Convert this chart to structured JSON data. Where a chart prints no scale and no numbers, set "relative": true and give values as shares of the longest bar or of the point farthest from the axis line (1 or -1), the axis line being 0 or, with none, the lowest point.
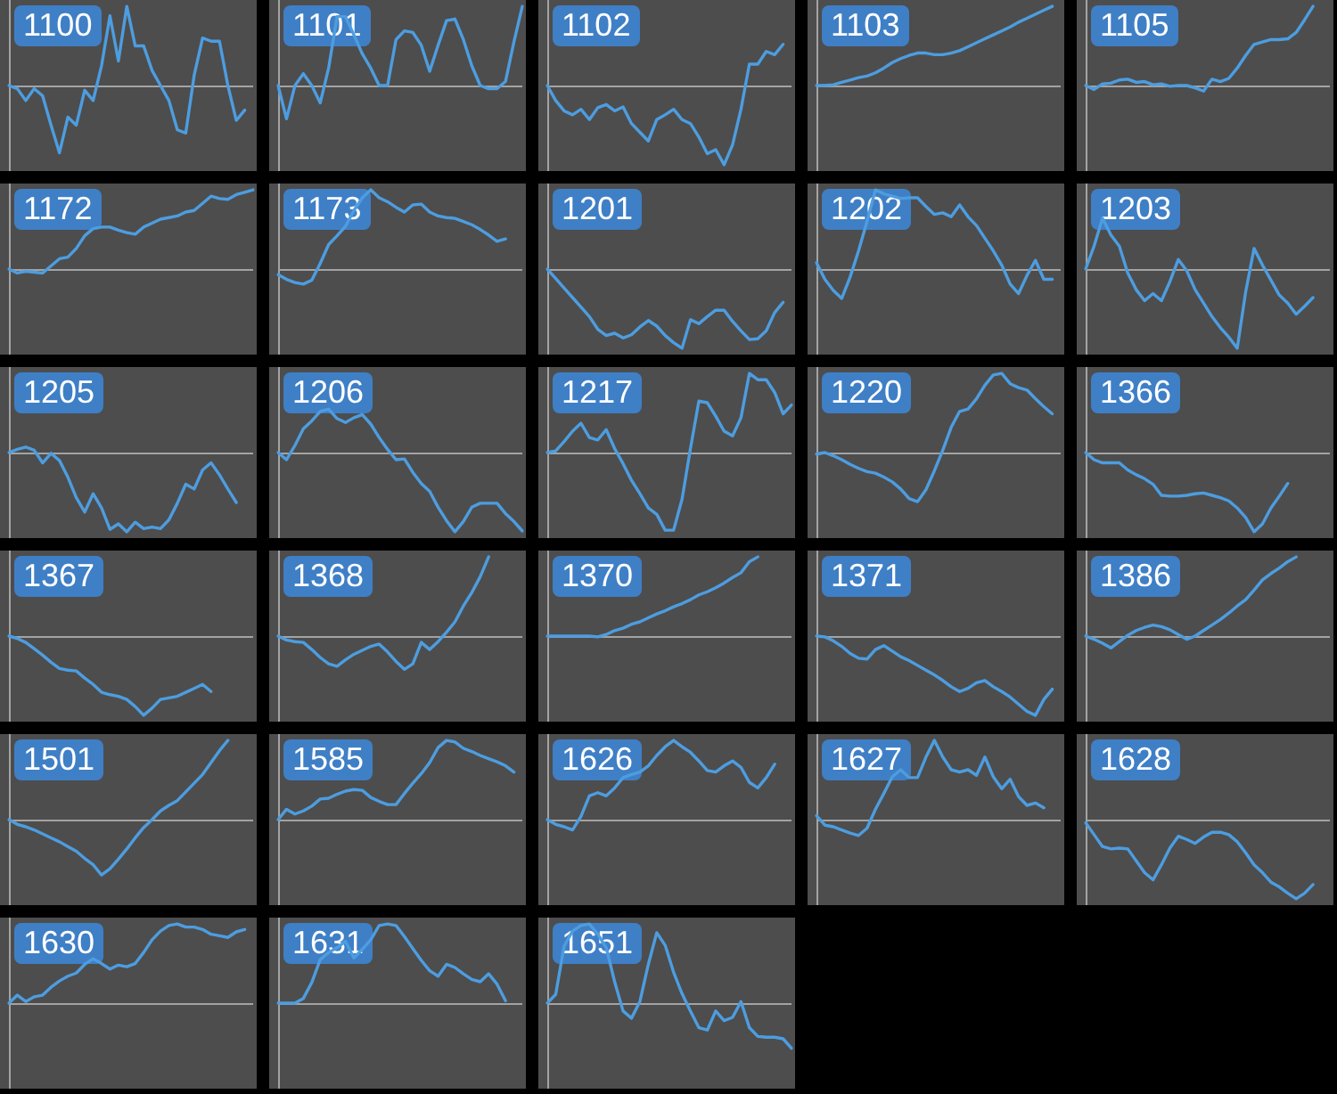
{
  "chart_data": [
    {
      "type": "line",
      "title": "1100",
      "relative": true,
      "marker": "none",
      "color": "#4d9de0",
      "categories": [
        null,
        null,
        null,
        null,
        null,
        null,
        null,
        null,
        null,
        null,
        null,
        null,
        null,
        null,
        null,
        null,
        null,
        null,
        null,
        null,
        null,
        null,
        null,
        null,
        null,
        null,
        null,
        null,
        null,
        null
      ],
      "values": [
        0,
        -0.04,
        -0.19,
        -0.04,
        -0.13,
        -0.5,
        -0.85,
        -0.4,
        -0.5,
        -0.06,
        -0.19,
        0.25,
        0.88,
        0.31,
        1,
        0.5,
        0.5,
        0.19,
        0,
        -0.19,
        -0.56,
        -0.6,
        0.13,
        0.6,
        0.56,
        0.56,
        0,
        -0.44,
        -0.31,
        null
      ]
    },
    {
      "type": "line",
      "title": "1101",
      "relative": true,
      "marker": "none",
      "color": "#4d9de0",
      "categories": [
        null,
        null,
        null,
        null,
        null,
        null,
        null,
        null,
        null,
        null,
        null,
        null,
        null,
        null,
        null,
        null,
        null,
        null,
        null,
        null,
        null,
        null,
        null,
        null,
        null,
        null,
        null,
        null,
        null,
        null
      ],
      "values": [
        0,
        -0.42,
        0,
        0.15,
        0,
        -0.22,
        0.22,
        0.87,
        0.87,
        0.64,
        0.4,
        0.22,
        0,
        0,
        0.58,
        0.69,
        0.67,
        0.51,
        0.18,
        0.51,
        0.82,
        0.84,
        0.58,
        0.25,
        0,
        -0.04,
        -0.04,
        0.05,
        0.55,
        1
      ]
    },
    {
      "type": "line",
      "title": "1102",
      "relative": true,
      "marker": "none",
      "color": "#4d9de0",
      "categories": [
        null,
        null,
        null,
        null,
        null,
        null,
        null,
        null,
        null,
        null,
        null,
        null,
        null,
        null,
        null,
        null,
        null,
        null,
        null,
        null,
        null,
        null,
        null,
        null,
        null,
        null,
        null,
        null,
        null,
        null
      ],
      "values": [
        0,
        -0.19,
        -0.32,
        -0.37,
        -0.3,
        -0.43,
        -0.28,
        -0.24,
        -0.32,
        -0.27,
        -0.48,
        -0.59,
        -0.7,
        -0.43,
        -0.37,
        -0.3,
        -0.43,
        -0.48,
        -0.65,
        -0.86,
        -0.81,
        -1,
        -0.75,
        -0.3,
        0.27,
        0.27,
        0.43,
        0.39,
        0.52,
        null
      ]
    },
    {
      "type": "line",
      "title": "1103",
      "relative": true,
      "marker": "none",
      "color": "#4d9de0",
      "categories": [
        null,
        null,
        null,
        null,
        null,
        null,
        null,
        null,
        null,
        null,
        null,
        null,
        null,
        null,
        null,
        null,
        null,
        null,
        null,
        null,
        null,
        null,
        null,
        null,
        null,
        null,
        null,
        null,
        null,
        null
      ],
      "values": [
        0,
        0,
        0.01,
        0.04,
        0.07,
        0.1,
        0.12,
        0.16,
        0.22,
        0.29,
        0.34,
        0.38,
        0.41,
        0.41,
        0.39,
        0.39,
        0.41,
        0.44,
        0.49,
        0.54,
        0.59,
        0.64,
        0.69,
        0.74,
        0.8,
        0.85,
        0.9,
        0.95,
        1,
        null
      ]
    },
    {
      "type": "line",
      "title": "1105",
      "relative": true,
      "marker": "none",
      "color": "#4d9de0",
      "categories": [
        null,
        null,
        null,
        null,
        null,
        null,
        null,
        null,
        null,
        null,
        null,
        null,
        null,
        null,
        null,
        null,
        null,
        null,
        null,
        null,
        null,
        null,
        null,
        null,
        null,
        null,
        null,
        null,
        null,
        null
      ],
      "values": [
        0,
        -0.05,
        0.02,
        0.03,
        0.07,
        0.08,
        0.04,
        0.05,
        0.01,
        0.02,
        -0.01,
        0,
        0,
        -0.03,
        -0.07,
        0.08,
        0.05,
        0.09,
        0.22,
        0.38,
        0.52,
        0.55,
        0.58,
        0.58,
        0.59,
        0.67,
        0.83,
        1,
        null,
        null
      ]
    },
    {
      "type": "line",
      "title": "1172",
      "relative": true,
      "marker": "none",
      "color": "#4d9de0",
      "categories": [
        null,
        null,
        null,
        null,
        null,
        null,
        null,
        null,
        null,
        null,
        null,
        null,
        null,
        null,
        null,
        null,
        null,
        null,
        null,
        null,
        null,
        null,
        null,
        null,
        null,
        null,
        null,
        null,
        null,
        null
      ],
      "values": [
        0,
        -0.05,
        -0.03,
        -0.04,
        -0.05,
        0.04,
        0.13,
        0.15,
        0.26,
        0.42,
        0.51,
        0.53,
        0.53,
        0.49,
        0.46,
        0.44,
        0.53,
        0.58,
        0.63,
        0.65,
        0.67,
        0.72,
        0.74,
        0.83,
        0.92,
        0.89,
        0.88,
        0.94,
        0.97,
        1
      ]
    },
    {
      "type": "line",
      "title": "1173",
      "relative": true,
      "marker": "none",
      "color": "#4d9de0",
      "categories": [
        null,
        null,
        null,
        null,
        null,
        null,
        null,
        null,
        null,
        null,
        null,
        null,
        null,
        null,
        null,
        null,
        null,
        null,
        null,
        null,
        null,
        null,
        null,
        null,
        null,
        null,
        null,
        null,
        null,
        null
      ],
      "values": [
        -0.07,
        -0.13,
        -0.17,
        -0.19,
        -0.14,
        0.07,
        0.31,
        0.42,
        0.54,
        0.74,
        0.9,
        1,
        0.9,
        0.85,
        0.78,
        0.72,
        0.81,
        0.82,
        0.72,
        0.67,
        0.65,
        0.64,
        0.6,
        0.56,
        0.5,
        0.43,
        0.35,
        0.38,
        null,
        null
      ]
    },
    {
      "type": "line",
      "title": "1201",
      "relative": true,
      "marker": "none",
      "color": "#4d9de0",
      "categories": [
        null,
        null,
        null,
        null,
        null,
        null,
        null,
        null,
        null,
        null,
        null,
        null,
        null,
        null,
        null,
        null,
        null,
        null,
        null,
        null,
        null,
        null,
        null,
        null,
        null,
        null,
        null,
        null,
        null,
        null
      ],
      "values": [
        0,
        -0.12,
        -0.24,
        -0.36,
        -0.48,
        -0.6,
        -0.76,
        -0.84,
        -0.81,
        -0.87,
        -0.83,
        -0.73,
        -0.65,
        -0.72,
        -0.84,
        -0.93,
        -1,
        -0.64,
        -0.69,
        -0.6,
        -0.52,
        -0.52,
        -0.66,
        -0.78,
        -0.89,
        -0.88,
        -0.78,
        -0.55,
        -0.42,
        null
      ]
    },
    {
      "type": "line",
      "title": "1202",
      "relative": true,
      "marker": "none",
      "color": "#4d9de0",
      "categories": [
        null,
        null,
        null,
        null,
        null,
        null,
        null,
        null,
        null,
        null,
        null,
        null,
        null,
        null,
        null,
        null,
        null,
        null,
        null,
        null,
        null,
        null,
        null,
        null,
        null,
        null,
        null,
        null,
        null,
        null
      ],
      "values": [
        0.08,
        -0.13,
        -0.27,
        -0.37,
        -0.1,
        0.23,
        0.6,
        1,
        0.95,
        0.92,
        0.89,
        0.9,
        0.9,
        0.79,
        0.69,
        0.71,
        0.66,
        0.81,
        0.66,
        0.55,
        0.39,
        0.23,
        0.05,
        -0.19,
        -0.31,
        -0.08,
        0.11,
        -0.13,
        -0.13,
        null
      ]
    },
    {
      "type": "line",
      "title": "1203",
      "relative": true,
      "marker": "none",
      "color": "#4d9de0",
      "categories": [
        null,
        null,
        null,
        null,
        null,
        null,
        null,
        null,
        null,
        null,
        null,
        null,
        null,
        null,
        null,
        null,
        null,
        null,
        null,
        null,
        null,
        null,
        null,
        null,
        null,
        null,
        null,
        null,
        null,
        null
      ],
      "values": [
        0,
        0.29,
        0.64,
        0.43,
        0.29,
        -0.05,
        -0.26,
        -0.4,
        -0.31,
        -0.4,
        -0.16,
        0.12,
        -0.02,
        -0.26,
        -0.43,
        -0.6,
        -0.74,
        -0.86,
        -1,
        -0.29,
        0.26,
        0.05,
        -0.14,
        -0.33,
        -0.43,
        -0.57,
        -0.47,
        -0.36,
        null,
        null
      ]
    },
    {
      "type": "line",
      "title": "1205",
      "relative": true,
      "marker": "none",
      "color": "#4d9de0",
      "categories": [
        null,
        null,
        null,
        null,
        null,
        null,
        null,
        null,
        null,
        null,
        null,
        null,
        null,
        null,
        null,
        null,
        null,
        null,
        null,
        null,
        null,
        null,
        null,
        null,
        null,
        null,
        null,
        null,
        null,
        null
      ],
      "values": [
        0,
        0.04,
        0.07,
        0.03,
        -0.13,
        -0.01,
        -0.1,
        -0.31,
        -0.57,
        -0.75,
        -0.52,
        -0.7,
        -0.97,
        -0.9,
        -1,
        -0.88,
        -0.96,
        -0.94,
        -0.96,
        -0.85,
        -0.64,
        -0.4,
        -0.46,
        -0.22,
        -0.13,
        -0.28,
        -0.46,
        -0.63,
        null,
        null
      ]
    },
    {
      "type": "line",
      "title": "1206",
      "relative": true,
      "marker": "none",
      "color": "#4d9de0",
      "categories": [
        null,
        null,
        null,
        null,
        null,
        null,
        null,
        null,
        null,
        null,
        null,
        null,
        null,
        null,
        null,
        null,
        null,
        null,
        null,
        null,
        null,
        null,
        null,
        null,
        null,
        null,
        null,
        null,
        null,
        null
      ],
      "values": [
        0,
        -0.09,
        0.09,
        0.3,
        0.4,
        0.52,
        0.55,
        0.43,
        0.38,
        0.44,
        0.48,
        0.36,
        0.19,
        0.04,
        -0.09,
        -0.08,
        -0.25,
        -0.39,
        -0.49,
        -0.69,
        -0.86,
        -1,
        -0.87,
        -0.69,
        -0.64,
        -0.64,
        -0.64,
        -0.77,
        -0.87,
        -0.99
      ]
    },
    {
      "type": "line",
      "title": "1217",
      "relative": true,
      "marker": "none",
      "color": "#4d9de0",
      "categories": [
        null,
        null,
        null,
        null,
        null,
        null,
        null,
        null,
        null,
        null,
        null,
        null,
        null,
        null,
        null,
        null,
        null,
        null,
        null,
        null,
        null,
        null,
        null,
        null,
        null,
        null,
        null,
        null,
        null,
        null
      ],
      "values": [
        0,
        0.02,
        0.14,
        0.27,
        0.37,
        0.19,
        0.16,
        0.29,
        0.05,
        -0.14,
        -0.35,
        -0.52,
        -0.7,
        -0.78,
        -0.98,
        -0.98,
        -0.59,
        0.05,
        0.65,
        0.63,
        0.46,
        0.27,
        0.21,
        0.44,
        1,
        0.92,
        0.92,
        0.76,
        0.49,
        0.6
      ]
    },
    {
      "type": "line",
      "title": "1220",
      "relative": true,
      "marker": "none",
      "color": "#4d9de0",
      "categories": [
        null,
        null,
        null,
        null,
        null,
        null,
        null,
        null,
        null,
        null,
        null,
        null,
        null,
        null,
        null,
        null,
        null,
        null,
        null,
        null,
        null,
        null,
        null,
        null,
        null,
        null,
        null,
        null,
        null,
        null
      ],
      "values": [
        -0.02,
        0,
        -0.04,
        -0.09,
        -0.15,
        -0.2,
        -0.24,
        -0.26,
        -0.31,
        -0.37,
        -0.46,
        -0.58,
        -0.62,
        -0.47,
        -0.23,
        0.03,
        0.32,
        0.52,
        0.55,
        0.68,
        0.85,
        0.98,
        1,
        0.87,
        0.82,
        0.79,
        0.68,
        0.58,
        0.49,
        null
      ]
    },
    {
      "type": "line",
      "title": "1366",
      "relative": true,
      "marker": "none",
      "color": "#4d9de0",
      "categories": [
        null,
        null,
        null,
        null,
        null,
        null,
        null,
        null,
        null,
        null,
        null,
        null,
        null,
        null,
        null,
        null,
        null,
        null,
        null,
        null,
        null,
        null,
        null,
        null,
        null,
        null,
        null,
        null,
        null,
        null
      ],
      "values": [
        0,
        -0.09,
        -0.13,
        -0.13,
        -0.13,
        -0.22,
        -0.28,
        -0.33,
        -0.4,
        -0.54,
        -0.55,
        -0.55,
        -0.54,
        -0.52,
        -0.51,
        -0.54,
        -0.57,
        -0.61,
        -0.7,
        -0.82,
        -1,
        -0.9,
        -0.7,
        -0.55,
        -0.39,
        null,
        null,
        null,
        null,
        null
      ]
    },
    {
      "type": "line",
      "title": "1367",
      "relative": true,
      "marker": "none",
      "color": "#4d9de0",
      "categories": [
        null,
        null,
        null,
        null,
        null,
        null,
        null,
        null,
        null,
        null,
        null,
        null,
        null,
        null,
        null,
        null,
        null,
        null,
        null,
        null,
        null,
        null,
        null,
        null,
        null,
        null,
        null,
        null,
        null,
        null
      ],
      "values": [
        0,
        -0.03,
        -0.08,
        -0.16,
        -0.24,
        -0.33,
        -0.41,
        -0.43,
        -0.44,
        -0.53,
        -0.61,
        -0.71,
        -0.74,
        -0.76,
        -0.8,
        -0.89,
        -1,
        -0.91,
        -0.8,
        -0.78,
        -0.76,
        -0.71,
        -0.66,
        -0.61,
        -0.7,
        null,
        null,
        null,
        null,
        null
      ]
    },
    {
      "type": "line",
      "title": "1368",
      "relative": true,
      "marker": "none",
      "color": "#4d9de0",
      "categories": [
        null,
        null,
        null,
        null,
        null,
        null,
        null,
        null,
        null,
        null,
        null,
        null,
        null,
        null,
        null,
        null,
        null,
        null,
        null,
        null,
        null,
        null,
        null,
        null,
        null,
        null,
        null,
        null,
        null,
        null
      ],
      "values": [
        0,
        -0.05,
        -0.07,
        -0.08,
        -0.17,
        -0.27,
        -0.35,
        -0.38,
        -0.3,
        -0.23,
        -0.18,
        -0.13,
        -0.1,
        -0.2,
        -0.32,
        -0.42,
        -0.35,
        -0.08,
        -0.17,
        -0.07,
        0.05,
        0.18,
        0.38,
        0.55,
        0.75,
        1,
        null,
        null,
        null,
        null
      ]
    },
    {
      "type": "line",
      "title": "1370",
      "relative": true,
      "marker": "none",
      "color": "#4d9de0",
      "categories": [
        null,
        null,
        null,
        null,
        null,
        null,
        null,
        null,
        null,
        null,
        null,
        null,
        null,
        null,
        null,
        null,
        null,
        null,
        null,
        null,
        null,
        null,
        null,
        null,
        null,
        null,
        null,
        null,
        null,
        null
      ],
      "values": [
        0,
        0,
        0,
        0,
        0,
        0,
        -0.01,
        0.02,
        0.07,
        0.1,
        0.15,
        0.18,
        0.23,
        0.28,
        0.32,
        0.37,
        0.41,
        0.46,
        0.52,
        0.56,
        0.61,
        0.67,
        0.74,
        0.8,
        0.94,
        1,
        null,
        null,
        null,
        null
      ]
    },
    {
      "type": "line",
      "title": "1371",
      "relative": true,
      "marker": "none",
      "color": "#4d9de0",
      "categories": [
        null,
        null,
        null,
        null,
        null,
        null,
        null,
        null,
        null,
        null,
        null,
        null,
        null,
        null,
        null,
        null,
        null,
        null,
        null,
        null,
        null,
        null,
        null,
        null,
        null,
        null,
        null,
        null,
        null,
        null
      ],
      "values": [
        0,
        -0.01,
        -0.06,
        -0.13,
        -0.22,
        -0.28,
        -0.29,
        -0.17,
        -0.12,
        -0.19,
        -0.26,
        -0.31,
        -0.37,
        -0.43,
        -0.49,
        -0.56,
        -0.64,
        -0.7,
        -0.66,
        -0.59,
        -0.56,
        -0.64,
        -0.7,
        -0.77,
        -0.86,
        -0.95,
        -1,
        -0.8,
        -0.67,
        null
      ]
    },
    {
      "type": "line",
      "title": "1386",
      "relative": true,
      "marker": "none",
      "color": "#4d9de0",
      "categories": [
        null,
        null,
        null,
        null,
        null,
        null,
        null,
        null,
        null,
        null,
        null,
        null,
        null,
        null,
        null,
        null,
        null,
        null,
        null,
        null,
        null,
        null,
        null,
        null,
        null,
        null,
        null,
        null,
        null,
        null
      ],
      "values": [
        0,
        -0.04,
        -0.09,
        -0.15,
        -0.07,
        0.01,
        0.07,
        0.11,
        0.14,
        0.12,
        0.08,
        0.02,
        -0.04,
        0,
        0.07,
        0.14,
        0.21,
        0.29,
        0.38,
        0.46,
        0.58,
        0.71,
        0.79,
        0.86,
        0.94,
        1,
        null,
        null,
        null,
        null
      ]
    },
    {
      "type": "line",
      "title": "1501",
      "relative": true,
      "marker": "none",
      "color": "#4d9de0",
      "categories": [
        null,
        null,
        null,
        null,
        null,
        null,
        null,
        null,
        null,
        null,
        null,
        null,
        null,
        null,
        null,
        null,
        null,
        null,
        null,
        null,
        null,
        null,
        null,
        null,
        null,
        null,
        null,
        null,
        null,
        null
      ],
      "values": [
        0,
        -0.06,
        -0.09,
        -0.13,
        -0.18,
        -0.23,
        -0.28,
        -0.34,
        -0.4,
        -0.49,
        -0.57,
        -0.7,
        -0.62,
        -0.5,
        -0.37,
        -0.23,
        -0.1,
        0,
        0.11,
        0.18,
        0.24,
        0.35,
        0.46,
        0.57,
        0.72,
        0.87,
        1,
        null,
        null,
        null
      ]
    },
    {
      "type": "line",
      "title": "1585",
      "relative": true,
      "marker": "none",
      "color": "#4d9de0",
      "categories": [
        null,
        null,
        null,
        null,
        null,
        null,
        null,
        null,
        null,
        null,
        null,
        null,
        null,
        null,
        null,
        null,
        null,
        null,
        null,
        null,
        null,
        null,
        null,
        null,
        null,
        null,
        null,
        null,
        null,
        null
      ],
      "values": [
        0,
        0.13,
        0.07,
        0.11,
        0.17,
        0.26,
        0.27,
        0.32,
        0.36,
        0.38,
        0.37,
        0.28,
        0.23,
        0.19,
        0.19,
        0.33,
        0.46,
        0.58,
        0.72,
        0.91,
        1,
        0.98,
        0.9,
        0.86,
        0.81,
        0.77,
        0.73,
        0.68,
        0.6,
        null
      ]
    },
    {
      "type": "line",
      "title": "1626",
      "relative": true,
      "marker": "none",
      "color": "#4d9de0",
      "categories": [
        null,
        null,
        null,
        null,
        null,
        null,
        null,
        null,
        null,
        null,
        null,
        null,
        null,
        null,
        null,
        null,
        null,
        null,
        null,
        null,
        null,
        null,
        null,
        null,
        null,
        null,
        null,
        null,
        null,
        null
      ],
      "values": [
        0,
        -0.06,
        -0.09,
        -0.13,
        0.04,
        0.3,
        0.34,
        0.3,
        0.4,
        0.53,
        0.57,
        0.6,
        0.68,
        0.81,
        0.92,
        1,
        0.92,
        0.85,
        0.74,
        0.62,
        0.6,
        0.68,
        0.74,
        0.66,
        0.47,
        0.4,
        0.53,
        0.7,
        null,
        null
      ]
    },
    {
      "type": "line",
      "title": "1627",
      "relative": true,
      "marker": "none",
      "color": "#4d9de0",
      "categories": [
        null,
        null,
        null,
        null,
        null,
        null,
        null,
        null,
        null,
        null,
        null,
        null,
        null,
        null,
        null,
        null,
        null,
        null,
        null,
        null,
        null,
        null,
        null,
        null,
        null,
        null,
        null,
        null,
        null,
        null
      ],
      "values": [
        0.05,
        -0.07,
        -0.09,
        -0.13,
        -0.17,
        -0.2,
        -0.11,
        0.13,
        0.33,
        0.54,
        0.63,
        0.53,
        0.53,
        0.79,
        1,
        0.79,
        0.63,
        0.6,
        0.63,
        0.56,
        0.79,
        0.54,
        0.39,
        0.51,
        0.29,
        0.18,
        0.21,
        0.15,
        null,
        null
      ]
    },
    {
      "type": "line",
      "title": "1628",
      "relative": true,
      "marker": "none",
      "color": "#4d9de0",
      "categories": [
        null,
        null,
        null,
        null,
        null,
        null,
        null,
        null,
        null,
        null,
        null,
        null,
        null,
        null,
        null,
        null,
        null,
        null,
        null,
        null,
        null,
        null,
        null,
        null,
        null,
        null,
        null,
        null,
        null,
        null
      ],
      "values": [
        -0.04,
        -0.19,
        -0.34,
        -0.37,
        -0.36,
        -0.37,
        -0.52,
        -0.67,
        -0.76,
        -0.57,
        -0.36,
        -0.21,
        -0.25,
        -0.3,
        -0.22,
        -0.16,
        -0.16,
        -0.19,
        -0.28,
        -0.42,
        -0.57,
        -0.67,
        -0.79,
        -0.85,
        -0.93,
        -1,
        -0.93,
        -0.82,
        null,
        null
      ]
    },
    {
      "type": "line",
      "title": "1630",
      "relative": true,
      "marker": "none",
      "color": "#4d9de0",
      "categories": [
        null,
        null,
        null,
        null,
        null,
        null,
        null,
        null,
        null,
        null,
        null,
        null,
        null,
        null,
        null,
        null,
        null,
        null,
        null,
        null,
        null,
        null,
        null,
        null,
        null,
        null,
        null,
        null,
        null,
        null
      ],
      "values": [
        0,
        0.1,
        0.02,
        0.08,
        0.1,
        0.2,
        0.28,
        0.34,
        0.38,
        0.49,
        0.56,
        0.5,
        0.43,
        0.48,
        0.46,
        0.5,
        0.64,
        0.8,
        0.91,
        0.98,
        1,
        0.96,
        0.96,
        0.93,
        0.87,
        0.85,
        0.83,
        0.9,
        0.93,
        null
      ]
    },
    {
      "type": "line",
      "title": "1631",
      "relative": true,
      "marker": "none",
      "color": "#4d9de0",
      "categories": [
        null,
        null,
        null,
        null,
        null,
        null,
        null,
        null,
        null,
        null,
        null,
        null,
        null,
        null,
        null,
        null,
        null,
        null,
        null,
        null,
        null,
        null,
        null,
        null,
        null,
        null,
        null,
        null,
        null,
        null
      ],
      "values": [
        0,
        0,
        0,
        0.06,
        0.26,
        0.55,
        0.64,
        0.7,
        0.78,
        0.57,
        0.68,
        0.8,
        0.98,
        1,
        0.98,
        0.84,
        0.69,
        0.54,
        0.41,
        0.34,
        0.49,
        0.45,
        0.37,
        0.3,
        0.27,
        0.37,
        0.24,
        0.03,
        null,
        null
      ]
    },
    {
      "type": "line",
      "title": "1651",
      "relative": true,
      "marker": "none",
      "color": "#4d9de0",
      "categories": [
        null,
        null,
        null,
        null,
        null,
        null,
        null,
        null,
        null,
        null,
        null,
        null,
        null,
        null,
        null,
        null,
        null,
        null,
        null,
        null,
        null,
        null,
        null,
        null,
        null,
        null,
        null,
        null,
        null,
        null
      ],
      "values": [
        0,
        0.11,
        0.72,
        0.91,
        0.98,
        1,
        0.87,
        0.7,
        0.27,
        -0.1,
        -0.19,
        0.02,
        0.49,
        0.89,
        0.73,
        0.39,
        0.12,
        -0.1,
        -0.31,
        -0.34,
        -0.1,
        -0.22,
        -0.18,
        0.02,
        -0.31,
        -0.42,
        -0.43,
        -0.43,
        -0.45,
        -0.57
      ]
    }
  ]
}
